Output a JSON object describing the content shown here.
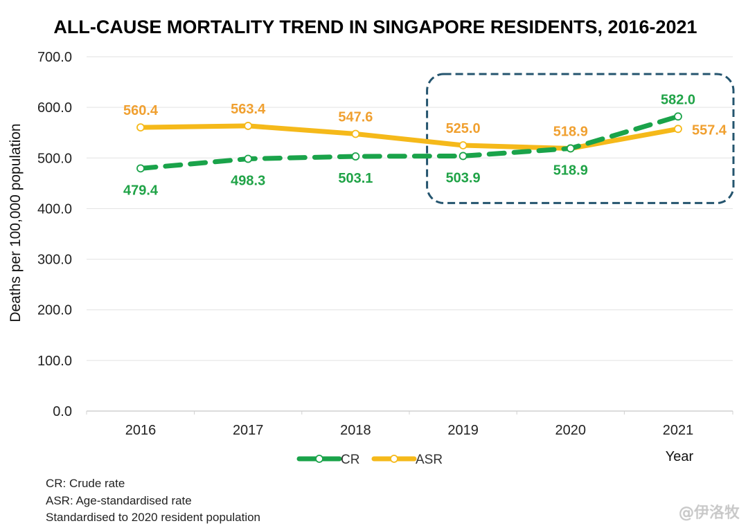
{
  "chart_data": {
    "type": "line",
    "title": "ALL-CAUSE MORTALITY TREND IN SINGAPORE RESIDENTS, 2016-2021",
    "xlabel": "Year",
    "ylabel": "Deaths per 100,000 population",
    "categories": [
      "2016",
      "2017",
      "2018",
      "2019",
      "2020",
      "2021"
    ],
    "ylim": [
      0,
      700
    ],
    "yticks": [
      "0.0",
      "100.0",
      "200.0",
      "300.0",
      "400.0",
      "500.0",
      "600.0",
      "700.0"
    ],
    "ytick_values": [
      0,
      100,
      200,
      300,
      400,
      500,
      600,
      700
    ],
    "grid": true,
    "legend_position": "bottom-center",
    "series": [
      {
        "name": "CR",
        "style": "dashed",
        "color": "#1aa34a",
        "label_color": "#20a347",
        "values": [
          479.4,
          498.3,
          503.1,
          503.9,
          518.9,
          582.0
        ],
        "labels": [
          "479.4",
          "498.3",
          "503.1",
          "503.9",
          "518.9",
          "582.0"
        ],
        "label_side": [
          "below",
          "below",
          "below",
          "below",
          "below",
          "above"
        ]
      },
      {
        "name": "ASR",
        "style": "solid",
        "color": "#f5b91a",
        "label_color": "#f0a030",
        "values": [
          560.4,
          563.4,
          547.6,
          525.0,
          518.9,
          557.4
        ],
        "labels": [
          "560.4",
          "563.4",
          "547.6",
          "525.0",
          "518.9",
          "557.4"
        ],
        "label_side": [
          "above",
          "above",
          "above",
          "above",
          "above",
          "right"
        ]
      }
    ],
    "annotations": [
      {
        "type": "dashed-rounded-box",
        "x_from": "2019",
        "x_to": "2021",
        "color": "#24546e",
        "meaning": "highlight 2019-2021"
      }
    ]
  },
  "notes": [
    "CR: Crude rate",
    "ASR: Age-standardised rate",
    "Standardised to 2020 resident population"
  ],
  "watermark": "@伊洛牧",
  "colors": {
    "grid": "#e2e2e2",
    "axis": "#d0d0d0",
    "highlight_box": "#24546e"
  }
}
